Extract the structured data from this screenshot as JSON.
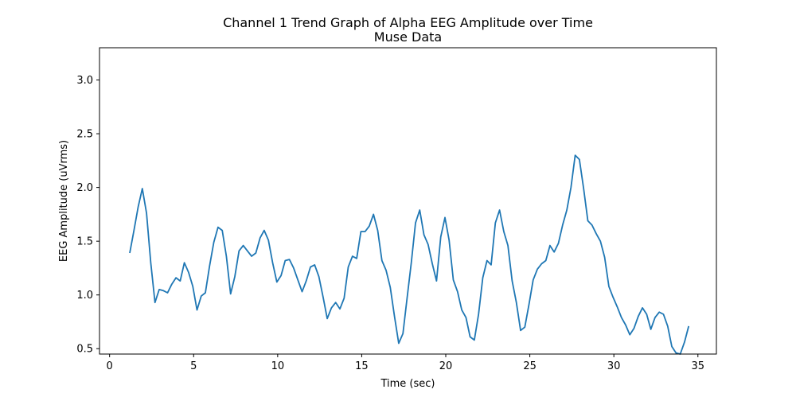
{
  "chart_data": {
    "type": "line",
    "title": "Channel 1 Trend Graph of Alpha EEG Amplitude over Time",
    "subtitle": "Muse Data",
    "xlabel": "Time (sec)",
    "ylabel": "EEG Amplitude (uVrms)",
    "xlim": [
      -0.6,
      36.1
    ],
    "ylim": [
      0.45,
      3.3
    ],
    "xticks": [
      0,
      5,
      10,
      15,
      20,
      25,
      30,
      35
    ],
    "xtick_labels": [
      "0",
      "5",
      "10",
      "15",
      "20",
      "25",
      "30",
      "35"
    ],
    "yticks": [
      0.5,
      1.0,
      1.5,
      2.0,
      2.5,
      3.0
    ],
    "ytick_labels": [
      "0.5",
      "1.0",
      "1.5",
      "2.0",
      "2.5",
      "3.0"
    ],
    "grid": false,
    "series": [
      {
        "color": "#1f77b4",
        "x": [
          1.2,
          1.45,
          1.7,
          1.95,
          2.2,
          2.45,
          2.7,
          2.95,
          3.2,
          3.45,
          3.7,
          3.95,
          4.2,
          4.45,
          4.7,
          4.95,
          5.2,
          5.45,
          5.7,
          5.95,
          6.2,
          6.45,
          6.7,
          6.95,
          7.2,
          7.45,
          7.7,
          7.95,
          8.2,
          8.45,
          8.7,
          8.95,
          9.2,
          9.45,
          9.7,
          9.95,
          10.2,
          10.45,
          10.7,
          10.95,
          11.2,
          11.45,
          11.7,
          11.95,
          12.2,
          12.45,
          12.7,
          12.95,
          13.2,
          13.45,
          13.7,
          13.95,
          14.2,
          14.45,
          14.7,
          14.95,
          15.2,
          15.45,
          15.7,
          15.95,
          16.2,
          16.45,
          16.7,
          16.95,
          17.2,
          17.45,
          17.7,
          17.95,
          18.2,
          18.45,
          18.7,
          18.95,
          19.2,
          19.45,
          19.7,
          19.95,
          20.2,
          20.45,
          20.7,
          20.95,
          21.2,
          21.45,
          21.7,
          21.95,
          22.2,
          22.45,
          22.7,
          22.95,
          23.2,
          23.45,
          23.7,
          23.95,
          24.2,
          24.45,
          24.7,
          24.95,
          25.2,
          25.45,
          25.7,
          25.95,
          26.2,
          26.45,
          26.7,
          26.95,
          27.2,
          27.45,
          27.7,
          27.95,
          28.2,
          28.45,
          28.7,
          28.95,
          29.2,
          29.45,
          29.7,
          29.95,
          30.2,
          30.45,
          30.7,
          30.95,
          31.2,
          31.45,
          31.7,
          31.95,
          32.2,
          32.45,
          32.7,
          32.95,
          33.2,
          33.45,
          33.7,
          33.95,
          34.2,
          34.45
        ],
        "y": [
          1.39,
          1.6,
          1.82,
          1.99,
          1.76,
          1.3,
          0.93,
          1.05,
          1.04,
          1.02,
          1.1,
          1.16,
          1.13,
          1.3,
          1.21,
          1.08,
          0.86,
          0.99,
          1.02,
          1.27,
          1.49,
          1.63,
          1.6,
          1.36,
          1.01,
          1.17,
          1.41,
          1.46,
          1.41,
          1.36,
          1.39,
          1.53,
          1.6,
          1.51,
          1.3,
          1.12,
          1.18,
          1.32,
          1.33,
          1.25,
          1.14,
          1.03,
          1.13,
          1.26,
          1.28,
          1.17,
          0.98,
          0.78,
          0.88,
          0.93,
          0.87,
          0.97,
          1.26,
          1.36,
          1.34,
          1.59,
          1.59,
          1.64,
          1.75,
          1.6,
          1.32,
          1.23,
          1.07,
          0.8,
          0.55,
          0.64,
          0.97,
          1.3,
          1.67,
          1.79,
          1.56,
          1.47,
          1.29,
          1.13,
          1.54,
          1.72,
          1.51,
          1.14,
          1.03,
          0.86,
          0.79,
          0.61,
          0.58,
          0.82,
          1.16,
          1.32,
          1.28,
          1.67,
          1.79,
          1.59,
          1.46,
          1.13,
          0.93,
          0.67,
          0.7,
          0.91,
          1.14,
          1.24,
          1.29,
          1.32,
          1.46,
          1.4,
          1.48,
          1.65,
          1.79,
          2.0,
          2.3,
          2.26,
          1.99,
          1.69,
          1.65,
          1.57,
          1.5,
          1.35,
          1.08,
          0.98,
          0.89,
          0.79,
          0.72,
          0.63,
          0.69,
          0.8,
          0.88,
          0.82,
          0.68,
          0.79,
          0.84,
          0.82,
          0.71,
          0.52,
          0.46,
          0.45,
          0.56,
          0.71
        ]
      }
    ]
  }
}
